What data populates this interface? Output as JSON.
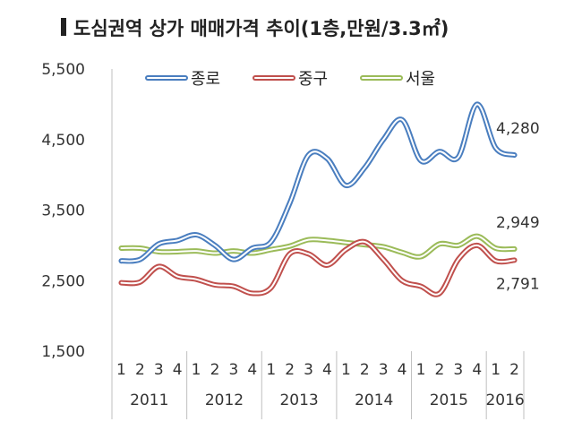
{
  "chart_data": {
    "type": "line",
    "title": "도심권역 상가 매매가격 추이(1층,만원/3.3㎡)",
    "quarters": [
      "1",
      "2",
      "3",
      "4",
      "1",
      "2",
      "3",
      "4",
      "1",
      "2",
      "3",
      "4",
      "1",
      "2",
      "3",
      "4",
      "1",
      "2",
      "3",
      "4",
      "1",
      "2"
    ],
    "years": [
      "2011",
      "2012",
      "2013",
      "2014",
      "2015",
      "2016"
    ],
    "ylim": [
      1500,
      5500
    ],
    "yticks": [
      "5,500",
      "4,500",
      "3,500",
      "2,500",
      "1,500"
    ],
    "ytick_values": [
      5500,
      4500,
      3500,
      2500,
      1500
    ],
    "legend_position": "top",
    "series": [
      {
        "name": "종로",
        "color": "#4a7ebf",
        "values": [
          2780,
          2800,
          3020,
          3070,
          3150,
          3000,
          2800,
          2960,
          3050,
          3600,
          4280,
          4230,
          3850,
          4100,
          4500,
          4780,
          4200,
          4330,
          4250,
          5000,
          4380,
          4280
        ]
      },
      {
        "name": "중구",
        "color": "#c0504d",
        "values": [
          2470,
          2480,
          2700,
          2560,
          2520,
          2440,
          2420,
          2320,
          2400,
          2880,
          2880,
          2720,
          2940,
          3050,
          2800,
          2500,
          2420,
          2320,
          2800,
          3000,
          2780,
          2791
        ]
      },
      {
        "name": "서울",
        "color": "#9bbb59",
        "values": [
          2960,
          2960,
          2910,
          2910,
          2920,
          2890,
          2920,
          2890,
          2940,
          2990,
          3080,
          3070,
          3040,
          3010,
          2980,
          2900,
          2840,
          3020,
          3000,
          3130,
          2960,
          2949
        ]
      }
    ],
    "annotations": [
      "4,280",
      "2,949",
      "2,791"
    ],
    "grid": false
  }
}
